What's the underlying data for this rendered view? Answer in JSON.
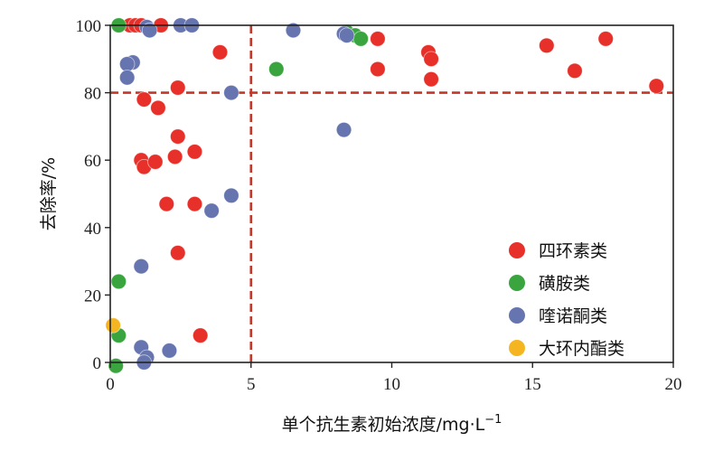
{
  "chart_data": {
    "type": "scatter",
    "xlabel": "单个抗生素初始浓度/mg·L",
    "xlabel_sup": "−1",
    "ylabel": "去除率/%",
    "xlim": [
      0,
      20
    ],
    "ylim": [
      0,
      100
    ],
    "xticks": [
      "0",
      "5",
      "10",
      "15",
      "20"
    ],
    "yticks": [
      "0",
      "20",
      "40",
      "60",
      "80",
      "100"
    ],
    "grid": false,
    "legend_position": "bottom-right",
    "reference_lines": [
      {
        "axis": "x",
        "value": 5,
        "style": "dashed",
        "color": "#c0392b"
      },
      {
        "axis": "y",
        "value": 80,
        "style": "dashed",
        "color": "#c0392b"
      }
    ],
    "series": [
      {
        "name": "四环素类",
        "color": "#e8302a",
        "points": [
          [
            0.7,
            100
          ],
          [
            0.9,
            100
          ],
          [
            1.1,
            100
          ],
          [
            1.8,
            100
          ],
          [
            3.9,
            92
          ],
          [
            9.5,
            96
          ],
          [
            9.5,
            87
          ],
          [
            11.3,
            92
          ],
          [
            11.4,
            90
          ],
          [
            11.4,
            84
          ],
          [
            15.5,
            94
          ],
          [
            16.5,
            86.5
          ],
          [
            17.6,
            96
          ],
          [
            19.4,
            82
          ],
          [
            2.4,
            81.5
          ],
          [
            1.2,
            78
          ],
          [
            1.7,
            75.5
          ],
          [
            2.4,
            67
          ],
          [
            2.3,
            61
          ],
          [
            3.0,
            62.5
          ],
          [
            1.1,
            60
          ],
          [
            1.2,
            58
          ],
          [
            1.6,
            59.5
          ],
          [
            2.0,
            47
          ],
          [
            3.0,
            47
          ],
          [
            2.4,
            32.5
          ],
          [
            3.2,
            8
          ]
        ]
      },
      {
        "name": "磺胺类",
        "color": "#3aa53f",
        "points": [
          [
            0.3,
            100
          ],
          [
            6.5,
            98.5
          ],
          [
            8.4,
            98
          ],
          [
            8.7,
            97
          ],
          [
            8.9,
            96
          ],
          [
            5.9,
            87
          ],
          [
            8.3,
            69
          ],
          [
            0.3,
            24
          ],
          [
            0.3,
            8
          ],
          [
            0.2,
            -1
          ]
        ]
      },
      {
        "name": "喹诺酮类",
        "color": "#6675b0",
        "points": [
          [
            1.3,
            99.5
          ],
          [
            1.4,
            98.5
          ],
          [
            2.5,
            100
          ],
          [
            2.9,
            100
          ],
          [
            6.5,
            98.5
          ],
          [
            8.3,
            97.5
          ],
          [
            8.4,
            97
          ],
          [
            0.8,
            89
          ],
          [
            0.6,
            88.5
          ],
          [
            0.6,
            84.5
          ],
          [
            4.3,
            80
          ],
          [
            8.3,
            69
          ],
          [
            4.3,
            49.5
          ],
          [
            3.6,
            45
          ],
          [
            1.1,
            28.5
          ],
          [
            1.1,
            4.5
          ],
          [
            1.3,
            1.5
          ],
          [
            2.1,
            3.5
          ],
          [
            1.2,
            0
          ]
        ]
      },
      {
        "name": "大环内酯类",
        "color": "#f5b520",
        "points": [
          [
            0.1,
            11
          ]
        ]
      }
    ]
  }
}
